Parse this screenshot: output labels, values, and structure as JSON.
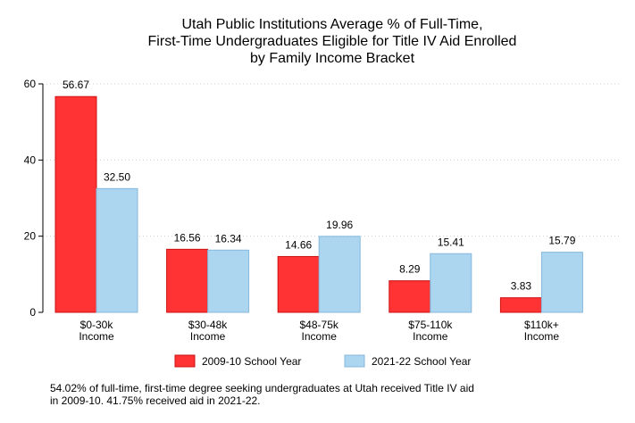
{
  "chart_data": {
    "type": "bar",
    "title": [
      "Utah Public Institutions Average % of Full-Time,",
      "First-Time Undergraduates Eligible for Title IV Aid Enrolled",
      "by Family Income Bracket"
    ],
    "categories": [
      [
        "$0-30k",
        "Income"
      ],
      [
        "$30-48k",
        "Income"
      ],
      [
        "$48-75k",
        "Income"
      ],
      [
        "$75-110k",
        "Income"
      ],
      [
        "$110k+",
        "Income"
      ]
    ],
    "series": [
      {
        "name": "2009-10 School Year",
        "color": "#ff3333",
        "stroke": "#cc1111",
        "values": [
          56.67,
          16.56,
          14.66,
          8.29,
          3.83
        ],
        "labels": [
          "56.67",
          "16.56",
          "14.66",
          "8.29",
          "3.83"
        ]
      },
      {
        "name": "2021-22 School Year",
        "color": "#acd5f0",
        "stroke": "#86b8dd",
        "values": [
          32.5,
          16.34,
          19.96,
          15.41,
          15.79
        ],
        "labels": [
          "32.50",
          "16.34",
          "19.96",
          "15.41",
          "15.79"
        ]
      }
    ],
    "yticks": [
      "0",
      "20",
      "40",
      "60"
    ],
    "ylim": [
      0,
      60
    ],
    "xlabel": "",
    "ylabel": "",
    "grid": true,
    "legend_position": "bottom"
  },
  "footnote": [
    "54.02% of full-time, first-time degree seeking undergraduates at Utah received Title IV aid",
    "in 2009-10. 41.75% received aid in 2021-22."
  ]
}
